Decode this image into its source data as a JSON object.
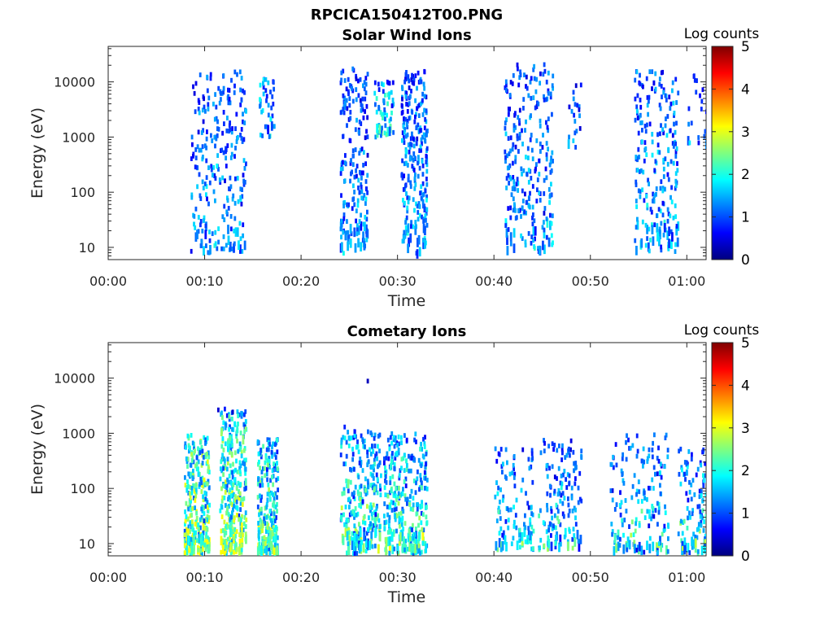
{
  "figure_title": "RPCICA150412T00.PNG",
  "colormap": [
    "#00007f",
    "#0000ff",
    "#007fff",
    "#00ffff",
    "#7fff7f",
    "#ffff00",
    "#ff7f00",
    "#ff0000",
    "#7f0000"
  ],
  "chart_data": [
    {
      "type": "heatmap",
      "title": "Solar Wind Ions",
      "xlabel": "Time",
      "ylabel": "Energy (eV)",
      "xlim": [
        0,
        62
      ],
      "ylim": [
        6,
        44000
      ],
      "yscale": "log",
      "xticks": [
        0,
        10,
        20,
        30,
        40,
        50,
        60
      ],
      "xtick_labels": [
        "00:00",
        "00:10",
        "00:20",
        "00:30",
        "00:40",
        "00:50",
        "01:00"
      ],
      "yticks": [
        10,
        100,
        1000,
        10000
      ],
      "ytick_labels": [
        "10",
        "100",
        "1000",
        "10000"
      ],
      "colorbar": {
        "label": "Log counts",
        "min": 0,
        "max": 5,
        "ticks": [
          "0",
          "1",
          "2",
          "3",
          "4",
          "5"
        ]
      },
      "bursts": [
        {
          "t0": 8.5,
          "t1": 14.2,
          "e_min": 7,
          "e_max": 14000,
          "level": 1.2,
          "n": 260
        },
        {
          "t0": 15.6,
          "t1": 17.2,
          "e_min": 900,
          "e_max": 11000,
          "level": 1.5,
          "n": 40
        },
        {
          "t0": 24.0,
          "t1": 26.8,
          "e_min": 7,
          "e_max": 16000,
          "level": 1.1,
          "n": 200
        },
        {
          "t0": 27.5,
          "t1": 29.5,
          "e_min": 900,
          "e_max": 9000,
          "level": 1.6,
          "n": 60
        },
        {
          "t0": 30.3,
          "t1": 33.0,
          "e_min": 6,
          "e_max": 14000,
          "level": 1.2,
          "n": 260
        },
        {
          "t0": 41.0,
          "t1": 46.0,
          "e_min": 7,
          "e_max": 19000,
          "level": 1.2,
          "n": 260
        },
        {
          "t0": 47.5,
          "t1": 49.0,
          "e_min": 500,
          "e_max": 9000,
          "level": 1.0,
          "n": 20
        },
        {
          "t0": 54.5,
          "t1": 59.0,
          "e_min": 7,
          "e_max": 14000,
          "level": 1.3,
          "n": 230
        },
        {
          "t0": 60.0,
          "t1": 62.0,
          "e_min": 500,
          "e_max": 12000,
          "level": 1.0,
          "n": 20
        }
      ]
    },
    {
      "type": "heatmap",
      "title": "Cometary Ions",
      "xlabel": "Time",
      "ylabel": "Energy (eV)",
      "xlim": [
        0,
        62
      ],
      "ylim": [
        6,
        44000
      ],
      "yscale": "log",
      "xticks": [
        0,
        10,
        20,
        30,
        40,
        50,
        60
      ],
      "xtick_labels": [
        "00:00",
        "00:10",
        "00:20",
        "00:30",
        "00:40",
        "00:50",
        "01:00"
      ],
      "yticks": [
        10,
        100,
        1000,
        10000
      ],
      "ytick_labels": [
        "10",
        "100",
        "1000",
        "10000"
      ],
      "colorbar": {
        "label": "Log counts",
        "min": 0,
        "max": 5,
        "ticks": [
          "0",
          "1",
          "2",
          "3",
          "4",
          "5"
        ]
      },
      "bursts": [
        {
          "t0": 7.8,
          "t1": 10.4,
          "e_min": 6,
          "e_max": 900,
          "level": 2.2,
          "n": 300
        },
        {
          "t0": 11.5,
          "t1": 14.2,
          "e_min": 6,
          "e_max": 2500,
          "level": 2.0,
          "n": 320
        },
        {
          "t0": 15.4,
          "t1": 17.5,
          "e_min": 6,
          "e_max": 700,
          "level": 1.8,
          "n": 220
        },
        {
          "t0": 24.0,
          "t1": 28.2,
          "e_min": 6,
          "e_max": 1300,
          "level": 1.6,
          "n": 280
        },
        {
          "t0": 28.5,
          "t1": 33.0,
          "e_min": 6,
          "e_max": 900,
          "level": 1.6,
          "n": 320
        },
        {
          "t0": 40.0,
          "t1": 44.0,
          "e_min": 7,
          "e_max": 500,
          "level": 1.2,
          "n": 110
        },
        {
          "t0": 44.5,
          "t1": 49.0,
          "e_min": 7,
          "e_max": 700,
          "level": 1.1,
          "n": 150
        },
        {
          "t0": 52.0,
          "t1": 58.0,
          "e_min": 6,
          "e_max": 900,
          "level": 1.2,
          "n": 170
        },
        {
          "t0": 59.0,
          "t1": 62.0,
          "e_min": 6,
          "e_max": 500,
          "level": 1.3,
          "n": 110
        }
      ],
      "points": [
        {
          "t": 26.8,
          "e": 8000,
          "level": 0.3
        },
        {
          "t": 11.3,
          "e": 2400,
          "level": 0.4
        },
        {
          "t": 12.8,
          "e": 2200,
          "level": 0.4
        }
      ]
    }
  ]
}
